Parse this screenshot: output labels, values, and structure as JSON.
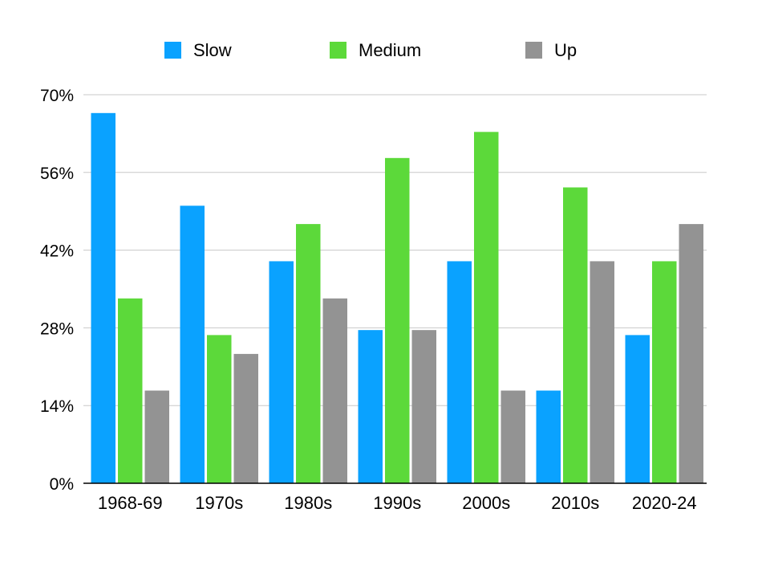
{
  "chart_data": {
    "type": "bar",
    "categories": [
      "1968-69",
      "1970s",
      "1980s",
      "1990s",
      "2000s",
      "2010s",
      "2020-24"
    ],
    "series": [
      {
        "name": "Slow",
        "color": "#0aa2ff",
        "values": [
          66.7,
          50.0,
          40.0,
          27.6,
          40.0,
          16.7,
          26.7
        ]
      },
      {
        "name": "Medium",
        "color": "#5cd93a",
        "values": [
          33.3,
          26.7,
          46.7,
          58.6,
          63.3,
          53.3,
          40.0
        ]
      },
      {
        "name": "Up",
        "color": "#939393",
        "values": [
          16.7,
          23.3,
          33.3,
          27.6,
          16.7,
          40.0,
          46.7
        ]
      }
    ],
    "y_ticks": [
      "0%",
      "14%",
      "28%",
      "42%",
      "56%",
      "70%"
    ],
    "ylim": [
      0,
      70
    ],
    "grid": true,
    "legend_position": "top"
  }
}
